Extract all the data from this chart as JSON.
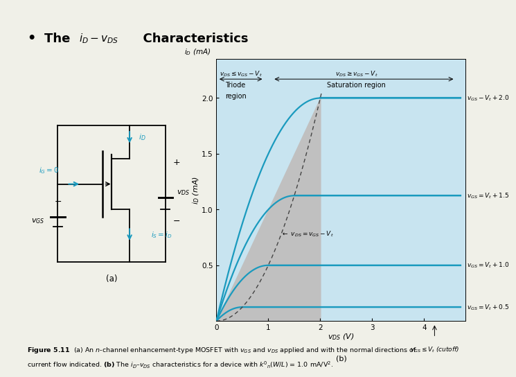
{
  "bg_color": "#f0f0e8",
  "plot_bg_color": "#c8e4f0",
  "triode_bg_color": "#c0c0c0",
  "curve_color": "#1a9abe",
  "dashed_line_color": "#444444",
  "xlabel": "$v_{DS}$ (V)",
  "ylabel": "$i_D$ (mA)",
  "xlim": [
    0,
    4.8
  ],
  "ylim": [
    0,
    2.35
  ],
  "xticks": [
    0,
    1,
    2,
    3,
    4
  ],
  "yticks": [
    0.5,
    1.0,
    1.5,
    2.0
  ],
  "k_n": 1.0,
  "vgs_values": [
    0.5,
    1.0,
    1.5,
    2.0
  ],
  "curve_labels": [
    "$v_{GS} = V_t + 0.5$",
    "$v_{GS} = V_t + 1.0$",
    "$v_{GS} = V_t + 1.5$",
    "$v_{GS} - V_t + 2.0$"
  ],
  "sat_currents": [
    0.125,
    0.5,
    1.125,
    2.0
  ],
  "label_b": "(b)"
}
